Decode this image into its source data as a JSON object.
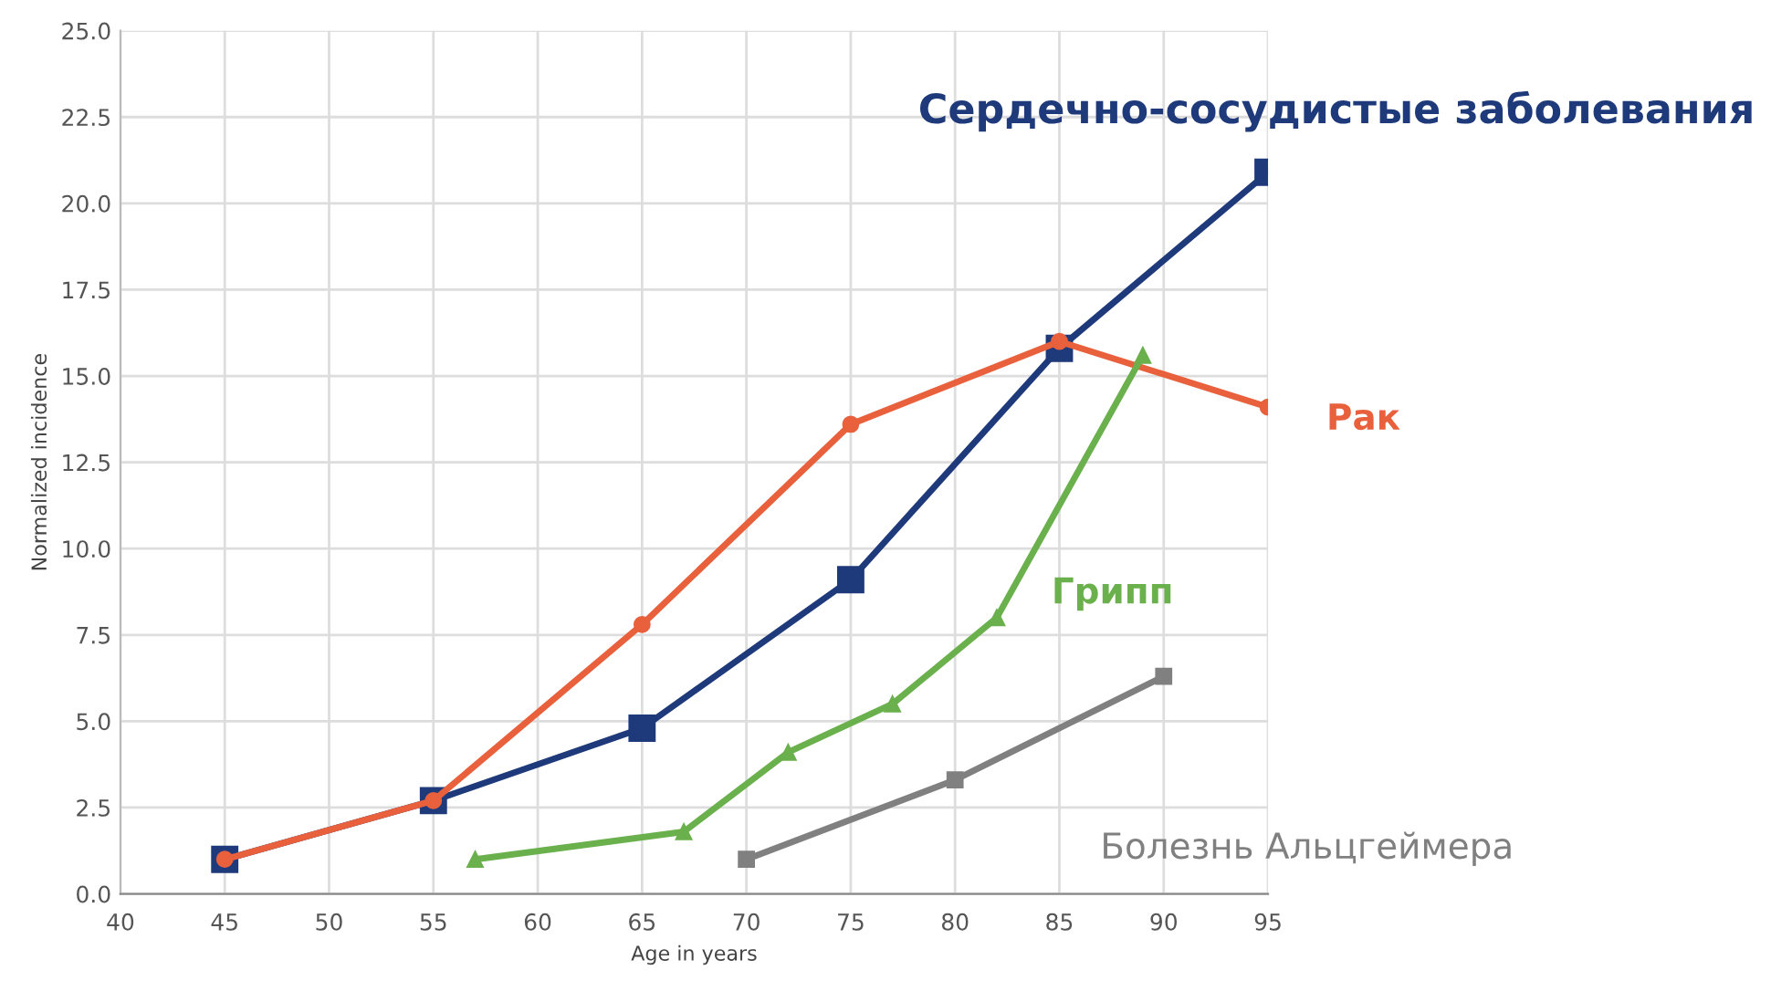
{
  "chart_data": {
    "type": "line",
    "xlabel": "Age in years",
    "ylabel": "Normalized incidence",
    "xlim": [
      40,
      95
    ],
    "xticks": [
      40,
      45,
      50,
      55,
      60,
      65,
      70,
      75,
      80,
      85,
      90,
      95
    ],
    "ylim": [
      0,
      25
    ],
    "yticks": [
      {
        "value": 0,
        "label": "0.0"
      },
      {
        "value": 2.5,
        "label": "2.5"
      },
      {
        "value": 5,
        "label": "5.0"
      },
      {
        "value": 7.5,
        "label": "7.5"
      },
      {
        "value": 10,
        "label": "10.0"
      },
      {
        "value": 12.5,
        "label": "12.5"
      },
      {
        "value": 15,
        "label": "15.0"
      },
      {
        "value": 17.5,
        "label": "17.5"
      },
      {
        "value": 20,
        "label": "20.0"
      },
      {
        "value": 22.5,
        "label": "22.5"
      },
      {
        "value": 25,
        "label": "25.0"
      }
    ],
    "grid": true,
    "legend": false,
    "series": [
      {
        "name": "Сердечно-сосудистые заболевания",
        "color": "#1f3a7a",
        "marker": "square",
        "x": [
          45,
          55,
          65,
          75,
          85,
          95
        ],
        "values": [
          1.0,
          2.7,
          4.8,
          9.1,
          15.8,
          20.9
        ]
      },
      {
        "name": "Рак",
        "color": "#e8603c",
        "marker": "circle",
        "x": [
          45,
          55,
          65,
          75,
          85,
          95
        ],
        "values": [
          1.0,
          2.7,
          7.8,
          13.6,
          16.0,
          14.1
        ]
      },
      {
        "name": "Грипп",
        "color": "#6ab04c",
        "marker": "triangle",
        "x": [
          57,
          67,
          72,
          77,
          82,
          89
        ],
        "values": [
          1.0,
          1.8,
          4.1,
          5.5,
          8.0,
          15.6
        ]
      },
      {
        "name": "Болезнь Альцгеймера",
        "color": "#808080",
        "marker": "square",
        "x": [
          70,
          80,
          90
        ],
        "values": [
          1.0,
          3.3,
          6.3
        ]
      }
    ]
  }
}
